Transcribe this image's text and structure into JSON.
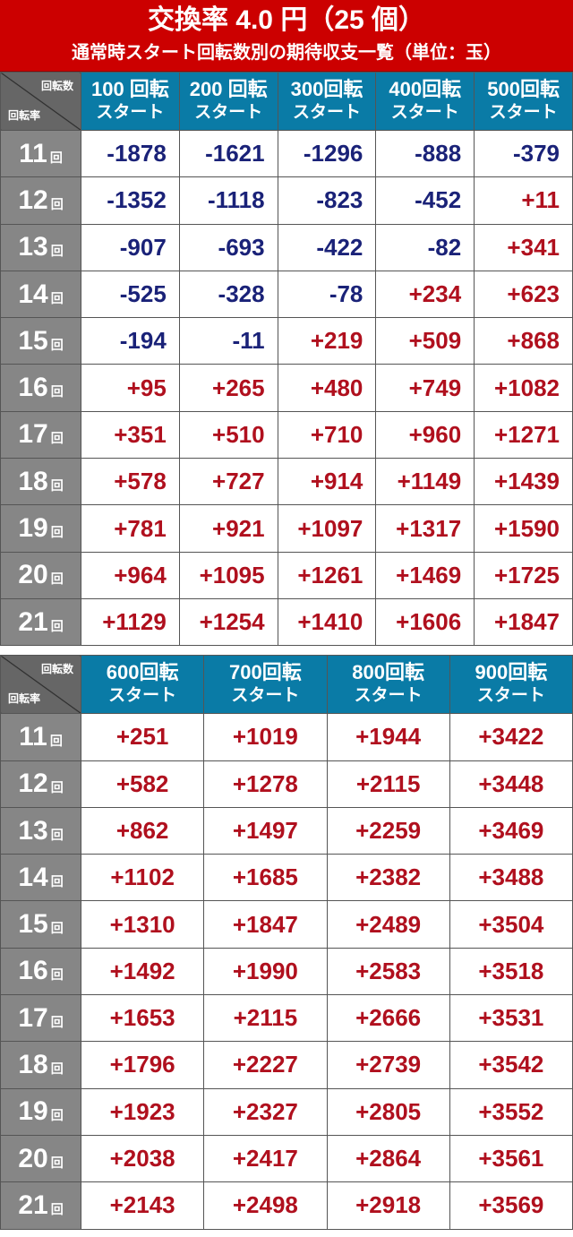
{
  "title": {
    "line1": "交換率 4.0 円（25 個）",
    "line2": "通常時スタート回転数別の期待収支一覧（単位：玉）"
  },
  "corner": {
    "top": "回転数",
    "bottom": "回転率"
  },
  "colors": {
    "title_bg": "#cc0000",
    "header_bg": "#0a7ba6",
    "negative": "#1a2278",
    "positive": "#b0101e",
    "row_header_bg": "#868686"
  },
  "row_suffix": "回",
  "rows": [
    "11",
    "12",
    "13",
    "14",
    "15",
    "16",
    "17",
    "18",
    "19",
    "20",
    "21"
  ],
  "tables": [
    {
      "columns": [
        {
          "top": "100 回転",
          "bottom": "スタート"
        },
        {
          "top": "200 回転",
          "bottom": "スタート"
        },
        {
          "top": "300回転",
          "bottom": "スタート"
        },
        {
          "top": "400回転",
          "bottom": "スタート"
        },
        {
          "top": "500回転",
          "bottom": "スタート"
        }
      ],
      "values": [
        [
          "-1878",
          "-1621",
          "-1296",
          "-888",
          "-379"
        ],
        [
          "-1352",
          "-1118",
          "-823",
          "-452",
          "+11"
        ],
        [
          "-907",
          "-693",
          "-422",
          "-82",
          "+341"
        ],
        [
          "-525",
          "-328",
          "-78",
          "+234",
          "+623"
        ],
        [
          "-194",
          "-11",
          "+219",
          "+509",
          "+868"
        ],
        [
          "+95",
          "+265",
          "+480",
          "+749",
          "+1082"
        ],
        [
          "+351",
          "+510",
          "+710",
          "+960",
          "+1271"
        ],
        [
          "+578",
          "+727",
          "+914",
          "+1149",
          "+1439"
        ],
        [
          "+781",
          "+921",
          "+1097",
          "+1317",
          "+1590"
        ],
        [
          "+964",
          "+1095",
          "+1261",
          "+1469",
          "+1725"
        ],
        [
          "+1129",
          "+1254",
          "+1410",
          "+1606",
          "+1847"
        ]
      ]
    },
    {
      "columns": [
        {
          "top": "600回転",
          "bottom": "スタート"
        },
        {
          "top": "700回転",
          "bottom": "スタート"
        },
        {
          "top": "800回転",
          "bottom": "スタート"
        },
        {
          "top": "900回転",
          "bottom": "スタート"
        }
      ],
      "values": [
        [
          "+251",
          "+1019",
          "+1944",
          "+3422"
        ],
        [
          "+582",
          "+1278",
          "+2115",
          "+3448"
        ],
        [
          "+862",
          "+1497",
          "+2259",
          "+3469"
        ],
        [
          "+1102",
          "+1685",
          "+2382",
          "+3488"
        ],
        [
          "+1310",
          "+1847",
          "+2489",
          "+3504"
        ],
        [
          "+1492",
          "+1990",
          "+2583",
          "+3518"
        ],
        [
          "+1653",
          "+2115",
          "+2666",
          "+3531"
        ],
        [
          "+1796",
          "+2227",
          "+2739",
          "+3542"
        ],
        [
          "+1923",
          "+2327",
          "+2805",
          "+3552"
        ],
        [
          "+2038",
          "+2417",
          "+2864",
          "+3561"
        ],
        [
          "+2143",
          "+2498",
          "+2918",
          "+3569"
        ]
      ]
    }
  ]
}
